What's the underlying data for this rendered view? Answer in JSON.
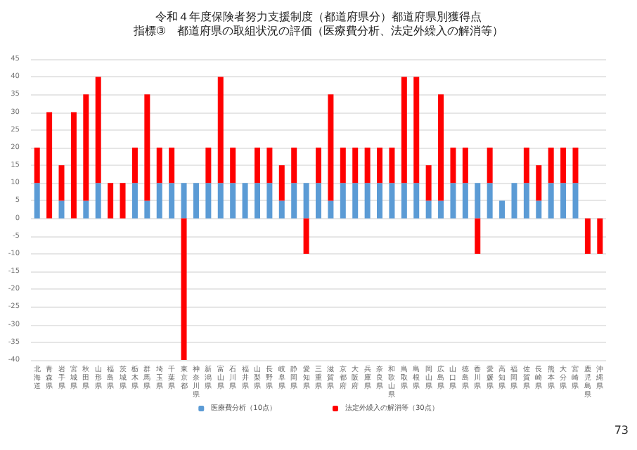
{
  "chart_data": {
    "type": "bar",
    "title": "令和４年度保険者努力支援制度（都道府県分）都道府県別獲得点",
    "subtitle": "指標③　都道府県の取組状況の評価（医療費分析、法定外繰入の解消等）",
    "categories": [
      "北海道",
      "青森県",
      "岩手県",
      "宮城県",
      "秋田県",
      "山形県",
      "福島県",
      "茨城県",
      "栃木県",
      "群馬県",
      "埼玉県",
      "千葉県",
      "東京都",
      "神奈川県",
      "新潟県",
      "富山県",
      "石川県",
      "福井県",
      "山梨県",
      "長野県",
      "岐阜県",
      "静岡県",
      "愛知県",
      "三重県",
      "滋賀県",
      "京都府",
      "大阪府",
      "兵庫県",
      "奈良県",
      "和歌山県",
      "鳥取県",
      "島根県",
      "岡山県",
      "広島県",
      "山口県",
      "徳島県",
      "香川県",
      "愛媛県",
      "高知県",
      "福岡県",
      "佐賀県",
      "長崎県",
      "熊本県",
      "大分県",
      "宮崎県",
      "鹿児島県",
      "沖縄県"
    ],
    "series": [
      {
        "name": "医療費分析（10点）",
        "color": "#5b9bd5",
        "values": [
          10,
          0,
          5,
          0,
          5,
          10,
          0,
          0,
          10,
          5,
          10,
          10,
          10,
          10,
          10,
          10,
          10,
          10,
          10,
          10,
          5,
          10,
          10,
          10,
          5,
          10,
          10,
          10,
          10,
          10,
          10,
          10,
          5,
          5,
          10,
          10,
          10,
          10,
          5,
          10,
          10,
          5,
          10,
          10,
          10,
          0,
          0
        ]
      },
      {
        "name": "法定外繰入の解消等（30点）",
        "color": "#ff0000",
        "values": [
          10,
          30,
          10,
          30,
          30,
          30,
          10,
          10,
          10,
          30,
          10,
          10,
          -40,
          0,
          10,
          30,
          10,
          0,
          10,
          10,
          10,
          10,
          -10,
          10,
          30,
          10,
          10,
          10,
          10,
          10,
          30,
          30,
          10,
          30,
          10,
          10,
          -10,
          10,
          0,
          0,
          10,
          10,
          10,
          10,
          10,
          -10,
          -10
        ]
      }
    ],
    "stacked": true,
    "ylim": [
      -40,
      45
    ],
    "yticks": [
      -40,
      -35,
      -30,
      -25,
      -20,
      -15,
      -10,
      -5,
      0,
      5,
      10,
      15,
      20,
      25,
      30,
      35,
      40,
      45
    ],
    "grid": "y",
    "legend": "bottom",
    "annotations": [
      "73"
    ]
  }
}
